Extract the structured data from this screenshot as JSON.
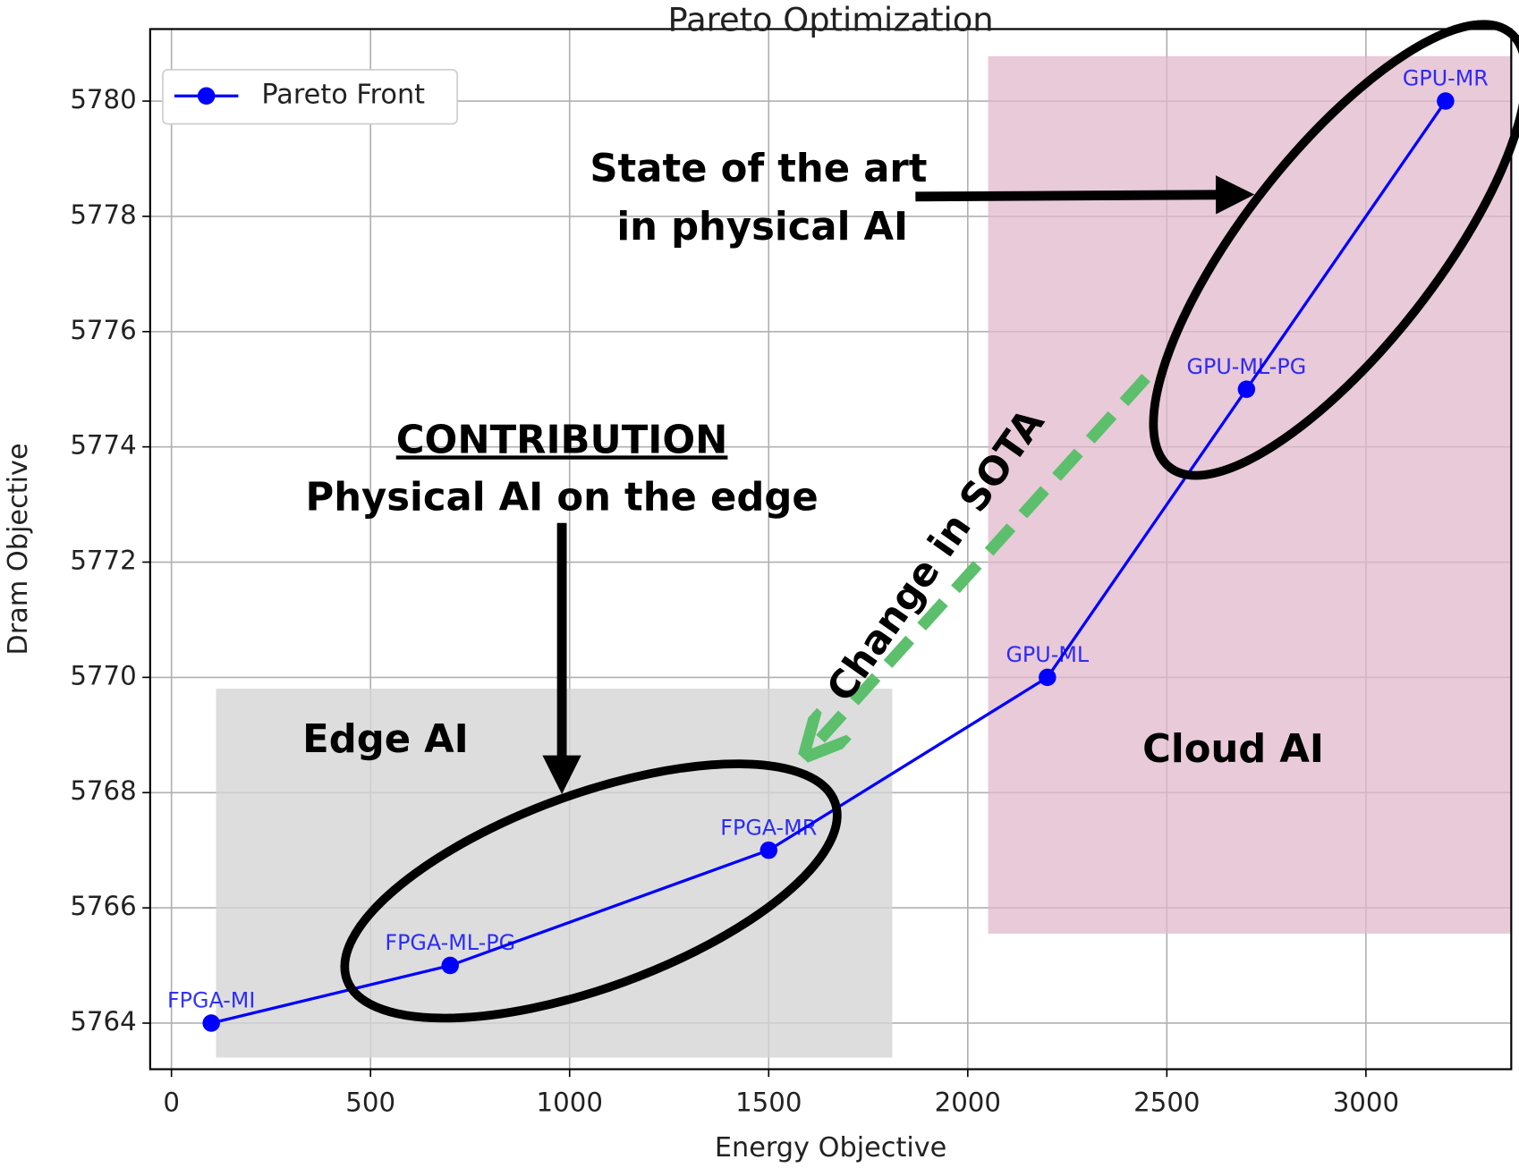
{
  "chart_data": {
    "type": "line",
    "title": "Pareto Optimization",
    "x_label": "Energy Objective",
    "y_label": "Dram Objective",
    "x": [
      100,
      700,
      1500,
      2200,
      2700,
      3200
    ],
    "series": [
      {
        "name": "Pareto Front",
        "color": "#0000ff",
        "values": [
          5764,
          5765,
          5767,
          5770,
          5775,
          5780
        ],
        "point_labels": [
          "FPGA-MI",
          "FPGA-ML-PG",
          "FPGA-MR",
          "GPU-ML",
          "GPU-ML-PG",
          "GPU-MR"
        ]
      }
    ],
    "xlim": [
      -53.5,
      3365
    ],
    "ylim": [
      5763.2,
      5781.25
    ],
    "xticks": [
      0,
      500,
      1000,
      1500,
      2000,
      2500,
      3000
    ],
    "yticks": [
      5764,
      5766,
      5768,
      5770,
      5772,
      5774,
      5776,
      5778,
      5780
    ],
    "grid": true,
    "legend": "upper left",
    "annotations": {
      "sota": [
        "State of the art",
        "in physical AI"
      ],
      "contribution_heading": "CONTRIBUTION",
      "contribution": "Physical AI on the edge",
      "edge": "Edge AI",
      "cloud": "Cloud AI",
      "change": "Change in SOTA"
    }
  }
}
